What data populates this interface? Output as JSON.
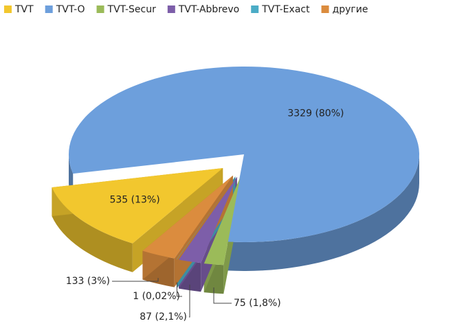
{
  "chart_data": {
    "type": "pie",
    "categories": [
      "TVT",
      "TVT-O",
      "TVT-Secur",
      "TVT-Abbrevo",
      "TVT-Exact",
      "другие"
    ],
    "values": [
      535,
      3329,
      75,
      87,
      1,
      133
    ],
    "value_labels": [
      "535 (13%)",
      "3329 (80%)",
      "75 (1,8%)",
      "87 (2,1%)",
      "1 (0,02%)",
      "133 (3%)"
    ],
    "colors": [
      "#f2c72e",
      "#6d9fdc",
      "#9bbb59",
      "#7d5ea9",
      "#4bacc6",
      "#db8c3e"
    ]
  }
}
